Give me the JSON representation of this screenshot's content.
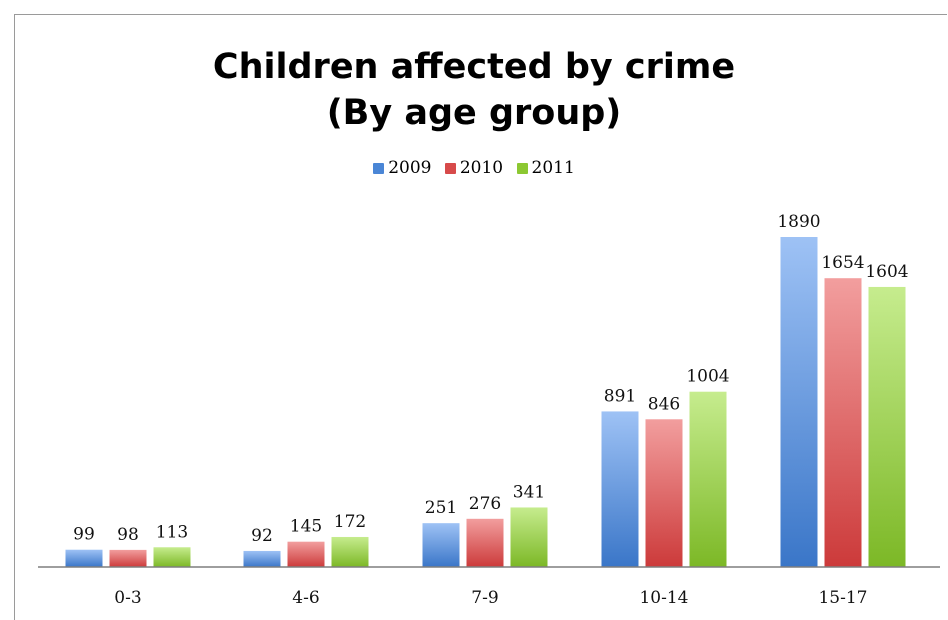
{
  "chart_data": {
    "type": "bar",
    "title_lines": [
      "Children affected by crime",
      "(By age group)"
    ],
    "categories": [
      "0-3",
      "4-6",
      "7-9",
      "10-14",
      "15-17"
    ],
    "series": [
      {
        "name": "2009",
        "values": [
          99,
          92,
          251,
          891,
          1890
        ],
        "color": "#4a86d6"
      },
      {
        "name": "2010",
        "values": [
          98,
          145,
          276,
          846,
          1654
        ],
        "color": "#d74a4a"
      },
      {
        "name": "2011",
        "values": [
          113,
          172,
          341,
          1004,
          1604
        ],
        "color": "#8cc832"
      }
    ],
    "ylim": [
      0,
      2000
    ],
    "legend_position": "top",
    "grid": false
  }
}
